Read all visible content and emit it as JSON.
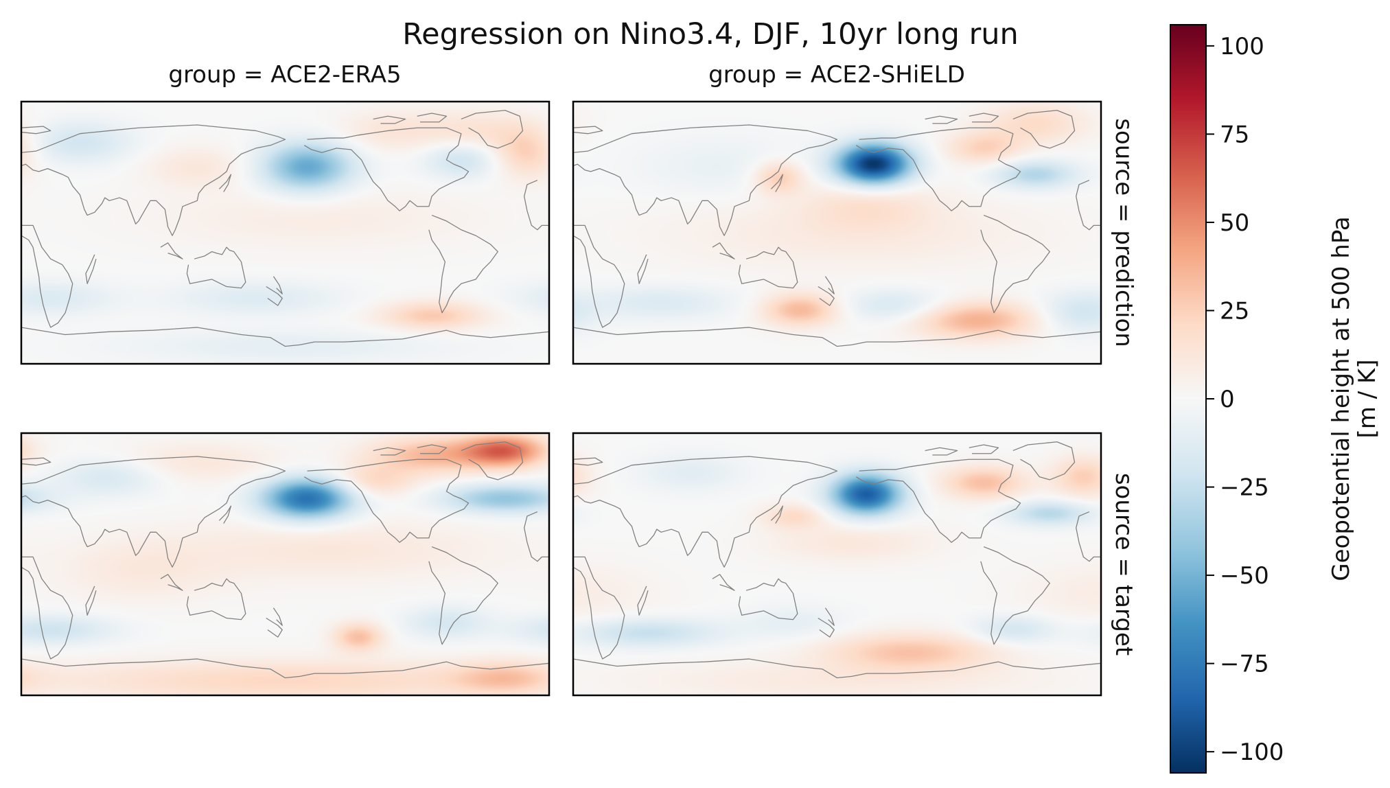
{
  "chart_data": {
    "type": "heatmap",
    "title": "Regression on Nino3.4, DJF, 10yr long run",
    "column_labels": [
      "group = ACE2-ERA5",
      "group = ACE2-SHiELD"
    ],
    "row_labels": [
      "source = prediction",
      "source = target"
    ],
    "colorbar": {
      "label_line1": "Geopotential height at 500 hPa",
      "label_line2": "[m / K]",
      "range": [
        -106,
        106
      ],
      "ticks": [
        100,
        75,
        50,
        25,
        0,
        -25,
        -50,
        -75,
        -100
      ],
      "tick_labels": [
        "100",
        "75",
        "50",
        "25",
        "0",
        "−25",
        "−50",
        "−75",
        "−100"
      ],
      "colormap": "RdBu_r",
      "colors": [
        "#053061",
        "#2166ac",
        "#4393c3",
        "#92c5de",
        "#d1e5f0",
        "#f7f7f7",
        "#fddbc7",
        "#f4a582",
        "#d6604d",
        "#b2182b",
        "#67001f"
      ]
    },
    "map": {
      "projection": "PlateCarree",
      "lon_range": [
        0,
        360
      ],
      "lat_range": [
        -90,
        90
      ],
      "coastline_color": "#808080"
    },
    "panels": [
      {
        "group": "ACE2-ERA5",
        "source": "prediction",
        "anomalies": [
          {
            "lon": 195,
            "lat": 45,
            "value": -55,
            "sx": 22,
            "sy": 12
          },
          {
            "lon": 300,
            "lat": 50,
            "value": -22,
            "sx": 18,
            "sy": 9
          },
          {
            "lon": 40,
            "lat": 62,
            "value": -20,
            "sx": 25,
            "sy": 10
          },
          {
            "lon": 310,
            "lat": 70,
            "value": 15,
            "sx": 30,
            "sy": 10
          },
          {
            "lon": 345,
            "lat": 55,
            "value": 25,
            "sx": 16,
            "sy": 12
          },
          {
            "lon": 250,
            "lat": 70,
            "value": 12,
            "sx": 25,
            "sy": 10
          },
          {
            "lon": 120,
            "lat": 45,
            "value": 12,
            "sx": 25,
            "sy": 10
          },
          {
            "lon": 200,
            "lat": 10,
            "value": 8,
            "sx": 80,
            "sy": 15
          },
          {
            "lon": 280,
            "lat": -57,
            "value": 28,
            "sx": 25,
            "sy": 7
          },
          {
            "lon": 20,
            "lat": -45,
            "value": -15,
            "sx": 30,
            "sy": 8
          },
          {
            "lon": 160,
            "lat": -45,
            "value": -14,
            "sx": 40,
            "sy": 8
          },
          {
            "lon": 180,
            "lat": -78,
            "value": -10,
            "sx": 80,
            "sy": 8
          }
        ]
      },
      {
        "group": "ACE2-SHiELD",
        "source": "prediction",
        "anomalies": [
          {
            "lon": 205,
            "lat": 47,
            "value": -105,
            "sx": 18,
            "sy": 10
          },
          {
            "lon": 315,
            "lat": 40,
            "value": -32,
            "sx": 20,
            "sy": 7
          },
          {
            "lon": 140,
            "lat": 38,
            "value": 28,
            "sx": 12,
            "sy": 8
          },
          {
            "lon": 280,
            "lat": 58,
            "value": 24,
            "sx": 18,
            "sy": 8
          },
          {
            "lon": 315,
            "lat": 75,
            "value": 20,
            "sx": 25,
            "sy": 10
          },
          {
            "lon": 200,
            "lat": 20,
            "value": 14,
            "sx": 30,
            "sy": 12
          },
          {
            "lon": 100,
            "lat": 45,
            "value": -8,
            "sx": 40,
            "sy": 15
          },
          {
            "lon": 155,
            "lat": -53,
            "value": 35,
            "sx": 18,
            "sy": 8
          },
          {
            "lon": 275,
            "lat": -60,
            "value": 38,
            "sx": 30,
            "sy": 9
          },
          {
            "lon": 345,
            "lat": -55,
            "value": -20,
            "sx": 20,
            "sy": 10
          },
          {
            "lon": 220,
            "lat": -50,
            "value": -18,
            "sx": 25,
            "sy": 8
          },
          {
            "lon": 60,
            "lat": -48,
            "value": -15,
            "sx": 35,
            "sy": 8
          },
          {
            "lon": 190,
            "lat": 0,
            "value": 10,
            "sx": 90,
            "sy": 18
          }
        ]
      },
      {
        "group": "ACE2-ERA5",
        "source": "target",
        "anomalies": [
          {
            "lon": 195,
            "lat": 45,
            "value": -80,
            "sx": 22,
            "sy": 10
          },
          {
            "lon": 330,
            "lat": 45,
            "value": -42,
            "sx": 30,
            "sy": 7
          },
          {
            "lon": 60,
            "lat": 60,
            "value": -18,
            "sx": 25,
            "sy": 9
          },
          {
            "lon": 330,
            "lat": 78,
            "value": 58,
            "sx": 20,
            "sy": 8
          },
          {
            "lon": 280,
            "lat": 75,
            "value": 35,
            "sx": 30,
            "sy": 9
          },
          {
            "lon": 240,
            "lat": 57,
            "value": 22,
            "sx": 20,
            "sy": 8
          },
          {
            "lon": 120,
            "lat": 70,
            "value": 12,
            "sx": 40,
            "sy": 10
          },
          {
            "lon": 210,
            "lat": 10,
            "value": 12,
            "sx": 80,
            "sy": 15
          },
          {
            "lon": 80,
            "lat": -5,
            "value": 10,
            "sx": 40,
            "sy": 15
          },
          {
            "lon": 230,
            "lat": -50,
            "value": 32,
            "sx": 12,
            "sy": 7
          },
          {
            "lon": 290,
            "lat": -40,
            "value": -18,
            "sx": 20,
            "sy": 8
          },
          {
            "lon": 20,
            "lat": -45,
            "value": -22,
            "sx": 30,
            "sy": 7
          },
          {
            "lon": 180,
            "lat": -80,
            "value": 22,
            "sx": 120,
            "sy": 10
          },
          {
            "lon": 330,
            "lat": -78,
            "value": 25,
            "sx": 25,
            "sy": 8
          }
        ]
      },
      {
        "group": "ACE2-SHiELD",
        "source": "target",
        "anomalies": [
          {
            "lon": 200,
            "lat": 48,
            "value": -88,
            "sx": 17,
            "sy": 10
          },
          {
            "lon": 325,
            "lat": 35,
            "value": -30,
            "sx": 20,
            "sy": 6
          },
          {
            "lon": 80,
            "lat": 63,
            "value": -12,
            "sx": 25,
            "sy": 9
          },
          {
            "lon": 280,
            "lat": 56,
            "value": 32,
            "sx": 20,
            "sy": 8
          },
          {
            "lon": 348,
            "lat": 60,
            "value": 26,
            "sx": 15,
            "sy": 10
          },
          {
            "lon": 150,
            "lat": 33,
            "value": 20,
            "sx": 15,
            "sy": 6
          },
          {
            "lon": 190,
            "lat": 15,
            "value": 12,
            "sx": 40,
            "sy": 10
          },
          {
            "lon": 230,
            "lat": -60,
            "value": 30,
            "sx": 40,
            "sy": 9
          },
          {
            "lon": 50,
            "lat": -47,
            "value": -25,
            "sx": 35,
            "sy": 7
          },
          {
            "lon": 300,
            "lat": -45,
            "value": -20,
            "sx": 20,
            "sy": 7
          },
          {
            "lon": 150,
            "lat": -40,
            "value": -10,
            "sx": 25,
            "sy": 8
          },
          {
            "lon": 0,
            "lat": -20,
            "value": 8,
            "sx": 40,
            "sy": 15
          },
          {
            "lon": 180,
            "lat": -80,
            "value": 10,
            "sx": 100,
            "sy": 10
          }
        ]
      }
    ]
  }
}
